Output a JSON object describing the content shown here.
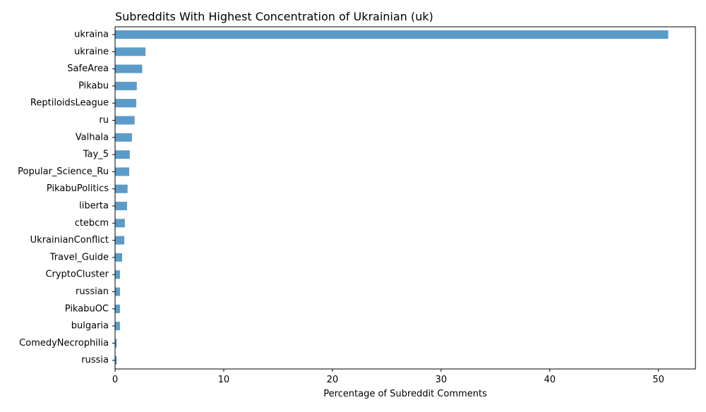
{
  "chart_data": {
    "type": "bar",
    "orientation": "horizontal",
    "title": "Subreddits With Highest Concentration of Ukrainian (uk)",
    "xlabel": "Percentage of Subreddit Comments",
    "ylabel": "",
    "xlim": [
      0,
      53.4
    ],
    "xticks": [
      0,
      10,
      20,
      30,
      40,
      50
    ],
    "grid": false,
    "legend": "none",
    "bar_color": "#5b9bc8",
    "categories": [
      "ukraina",
      "ukraine",
      "SafeArea",
      "Pikabu",
      "ReptiloidsLeague",
      "ru",
      "Valhala",
      "Tay_5",
      "Popular_Science_Ru",
      "PikabuPolitics",
      "liberta",
      "ctebcm",
      "UkrainianConflict",
      "Travel_Guide",
      "CryptoCluster",
      "russian",
      "PikabuOC",
      "bulgaria",
      "ComedyNecrophilia",
      "russia"
    ],
    "values": [
      50.9,
      2.8,
      2.5,
      2.0,
      1.95,
      1.8,
      1.55,
      1.35,
      1.3,
      1.15,
      1.1,
      0.9,
      0.85,
      0.65,
      0.45,
      0.45,
      0.45,
      0.45,
      0.15,
      0.15
    ]
  }
}
